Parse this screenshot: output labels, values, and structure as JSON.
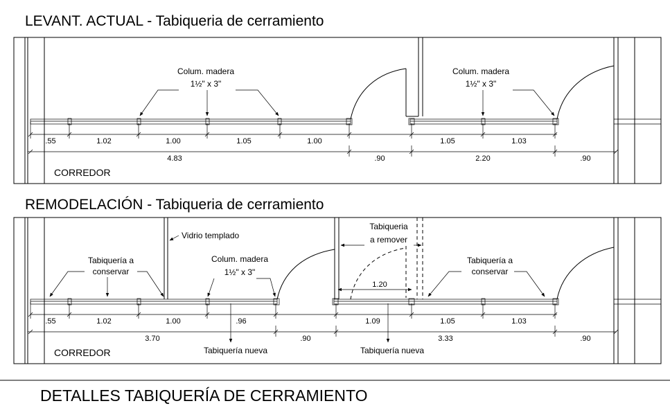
{
  "titles": {
    "current": "LEVANT. ACTUAL - Tabiqueria de cerramiento",
    "remodel": "REMODELACIÓN - Tabiqueria de cerramiento",
    "sheet": "DETALLES TABIQUERÍA DE CERRAMIENTO"
  },
  "current": {
    "col_label_1": "Colum. madera",
    "col_size_1": "1½\" x 3\"",
    "col_label_2": "Colum. madera",
    "col_size_2": "1½\" x 3\"",
    "room": "CORREDOR",
    "dims_a": [
      ".55",
      "1.02",
      "1.00",
      "1.05",
      "1.00",
      "1.05",
      "1.03"
    ],
    "dims_b": [
      "4.83",
      ".90",
      "2.20",
      ".90"
    ]
  },
  "remodel": {
    "glass": "Vidrio templado",
    "remove_1": "Tabiqueria",
    "remove_2": "a remover",
    "keep_l1": "Tabiquería a",
    "keep_l2": "conservar",
    "keep_r1": "Tabiquería a",
    "keep_r2": "conservar",
    "col_label": "Colum. madera",
    "col_size": "1½\" x 3\"",
    "new_1": "Tabiquería nueva",
    "new_2": "Tabiquería nueva",
    "room": "CORREDOR",
    "door_width": "1.20",
    "dims_a": [
      ".55",
      "1.02",
      "1.00",
      ".96",
      "1.09",
      "1.05",
      "1.03"
    ],
    "dims_b": [
      "3.70",
      ".90",
      "3.33",
      ".90"
    ]
  },
  "colors": {
    "ink": "#000000",
    "paper": "#ffffff"
  }
}
